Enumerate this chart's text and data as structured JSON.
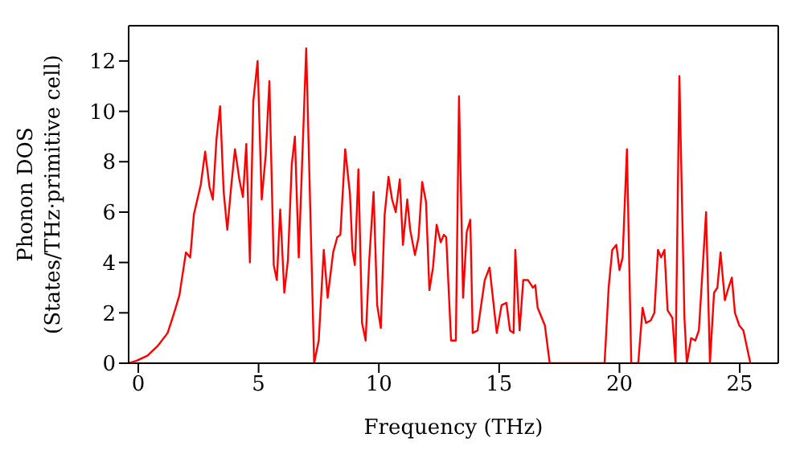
{
  "chart_data": {
    "type": "line",
    "xlabel": "Frequency (THz)",
    "ylabel": "Phonon DOS\n(States/THz·primitive cell)",
    "x": [
      -0.4,
      -0.07,
      0.38,
      0.82,
      1.22,
      1.49,
      1.71,
      1.98,
      2.16,
      2.31,
      2.6,
      2.78,
      2.96,
      3.1,
      3.25,
      3.4,
      3.55,
      3.7,
      3.87,
      4.02,
      4.2,
      4.35,
      4.49,
      4.64,
      4.78,
      4.96,
      5.13,
      5.3,
      5.45,
      5.63,
      5.76,
      5.9,
      6.07,
      6.22,
      6.38,
      6.51,
      6.67,
      6.98,
      7.31,
      7.5,
      7.71,
      7.87,
      8.1,
      8.27,
      8.4,
      8.6,
      8.8,
      8.9,
      9.0,
      9.15,
      9.3,
      9.45,
      9.6,
      9.78,
      9.93,
      10.08,
      10.24,
      10.4,
      10.55,
      10.7,
      10.87,
      11.0,
      11.18,
      11.3,
      11.5,
      11.65,
      11.8,
      11.96,
      12.1,
      12.25,
      12.4,
      12.57,
      12.7,
      12.8,
      13.0,
      13.2,
      13.33,
      13.5,
      13.65,
      13.8,
      13.9,
      14.1,
      14.4,
      14.6,
      14.9,
      15.1,
      15.3,
      15.45,
      15.6,
      15.67,
      15.85,
      16.0,
      16.2,
      16.4,
      16.5,
      16.6,
      16.9,
      17.1,
      19.38,
      19.55,
      19.7,
      19.87,
      20.0,
      20.13,
      20.31,
      20.49,
      20.78,
      20.96,
      21.1,
      21.3,
      21.45,
      21.6,
      21.73,
      21.87,
      22.0,
      22.2,
      22.33,
      22.49,
      22.7,
      22.8,
      22.98,
      23.15,
      23.3,
      23.6,
      23.76,
      23.93,
      24.07,
      24.2,
      24.38,
      24.5,
      24.67,
      24.8,
      24.98,
      25.15,
      25.44
    ],
    "series": [
      {
        "color": "#ff0000",
        "values": [
          0,
          0.1,
          0.3,
          0.7,
          1.2,
          2.0,
          2.7,
          4.4,
          4.2,
          5.9,
          7.1,
          8.4,
          7.0,
          6.5,
          8.9,
          10.2,
          6.8,
          5.3,
          7.1,
          8.5,
          7.3,
          6.6,
          8.7,
          4.0,
          10.4,
          12.0,
          6.5,
          8.3,
          11.2,
          3.9,
          3.3,
          6.1,
          2.8,
          4.1,
          7.9,
          9.0,
          4.2,
          12.5,
          0,
          0.9,
          4.5,
          2.6,
          4.4,
          5.0,
          5.1,
          8.5,
          6.7,
          4.5,
          3.9,
          7.7,
          1.6,
          0.9,
          4.1,
          6.8,
          2.3,
          1.4,
          5.9,
          7.4,
          6.5,
          6.0,
          7.3,
          4.7,
          6.5,
          5.3,
          4.3,
          5.0,
          7.2,
          6.4,
          2.9,
          3.8,
          5.5,
          4.8,
          5.1,
          5.0,
          0.9,
          0.9,
          10.6,
          2.6,
          5.2,
          5.7,
          1.2,
          1.3,
          3.3,
          3.8,
          1.2,
          2.3,
          2.4,
          1.3,
          1.2,
          4.5,
          1.3,
          3.3,
          3.3,
          3.0,
          3.1,
          2.2,
          1.5,
          0,
          0,
          3.0,
          4.5,
          4.7,
          3.7,
          4.2,
          8.5,
          0,
          0,
          2.2,
          1.6,
          1.7,
          2.0,
          4.5,
          4.2,
          4.5,
          2.1,
          1.8,
          0,
          11.4,
          1.8,
          0,
          1.0,
          0.9,
          1.3,
          6.0,
          0,
          2.8,
          3.0,
          4.4,
          2.5,
          2.9,
          3.4,
          2.0,
          1.5,
          1.3,
          0
        ]
      }
    ],
    "xlim": [
      -0.4,
      26.6
    ],
    "xticks": [
      0,
      5,
      10,
      15,
      20,
      25
    ],
    "ylim": [
      0,
      13.4
    ],
    "yticks": [
      0,
      2,
      4,
      6,
      8,
      10,
      12
    ],
    "grid": false,
    "marker": "none",
    "line_style": "solid"
  }
}
